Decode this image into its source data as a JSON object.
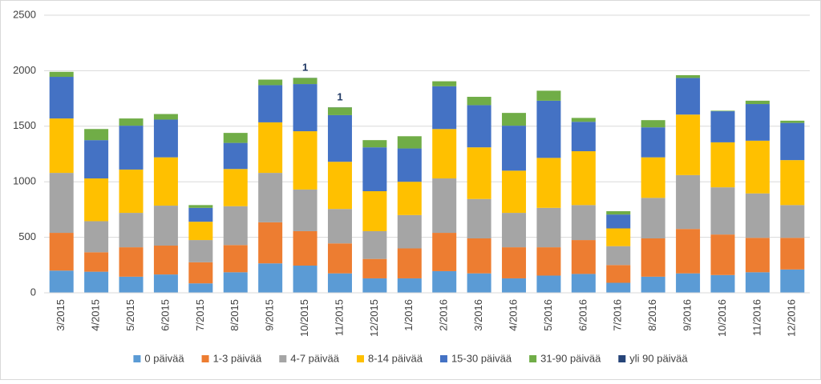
{
  "chart_data": {
    "type": "stacked_bar",
    "categories": [
      "3/2015",
      "4/2015",
      "5/2015",
      "6/2015",
      "7/2015",
      "8/2015",
      "9/2015",
      "10/2015",
      "11/2015",
      "12/2015",
      "1/2016",
      "2/2016",
      "3/2016",
      "4/2016",
      "5/2016",
      "6/2016",
      "7/2016",
      "8/2016",
      "9/2016",
      "10/2016",
      "11/2016",
      "12/2016"
    ],
    "series": [
      {
        "name": "0 päivää",
        "color": "#5b9bd5",
        "values": [
          200,
          190,
          145,
          165,
          85,
          185,
          265,
          245,
          175,
          130,
          130,
          195,
          175,
          130,
          155,
          170,
          90,
          145,
          175,
          160,
          185,
          210
        ]
      },
      {
        "name": "1-3 päivää",
        "color": "#ed7d31",
        "values": [
          340,
          175,
          265,
          260,
          190,
          245,
          370,
          310,
          270,
          175,
          270,
          345,
          315,
          280,
          255,
          305,
          160,
          345,
          400,
          365,
          310,
          285
        ]
      },
      {
        "name": "4-7 päivää",
        "color": "#a5a5a5",
        "values": [
          540,
          280,
          310,
          360,
          200,
          350,
          445,
          375,
          310,
          250,
          300,
          490,
          355,
          310,
          355,
          315,
          170,
          365,
          485,
          425,
          400,
          295
        ]
      },
      {
        "name": "8-14 päivää",
        "color": "#ffc000",
        "values": [
          490,
          385,
          390,
          435,
          165,
          335,
          455,
          525,
          425,
          360,
          300,
          445,
          465,
          380,
          450,
          485,
          160,
          365,
          545,
          405,
          475,
          405
        ]
      },
      {
        "name": "15-30 päivää",
        "color": "#4472c4",
        "values": [
          375,
          345,
          395,
          340,
          125,
          235,
          335,
          425,
          420,
          395,
          300,
          385,
          380,
          405,
          515,
          265,
          125,
          270,
          330,
          280,
          330,
          335
        ]
      },
      {
        "name": "31-90 päivää",
        "color": "#70ad47",
        "values": [
          45,
          100,
          65,
          50,
          25,
          90,
          50,
          55,
          70,
          65,
          110,
          45,
          75,
          115,
          90,
          35,
          30,
          65,
          25,
          5,
          30,
          20
        ]
      },
      {
        "name": "yli 90 päivää",
        "color": "#264478",
        "values": [
          0,
          0,
          0,
          0,
          0,
          0,
          0,
          1,
          1,
          0,
          0,
          0,
          0,
          0,
          0,
          0,
          0,
          0,
          0,
          0,
          0,
          0
        ]
      }
    ],
    "ylim": [
      0,
      2500
    ],
    "yticks": [
      0,
      500,
      1000,
      1500,
      2000,
      2500
    ],
    "grid": true,
    "legend": "bottom"
  }
}
